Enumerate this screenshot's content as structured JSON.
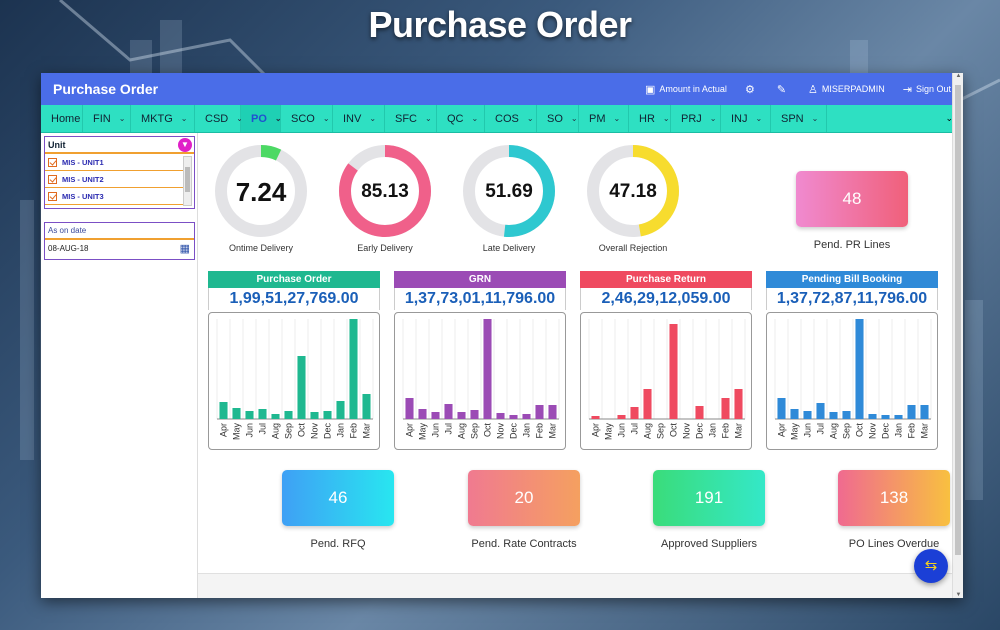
{
  "page_title": "Purchase Order",
  "app": {
    "title": "Purchase Order",
    "amount_label": "Amount in Actual",
    "user": "MISERPADMIN",
    "signout": "Sign Out"
  },
  "nav": [
    "Home",
    "FIN",
    "MKTG",
    "CSD",
    "PO",
    "SCO",
    "INV",
    "SFC",
    "QC",
    "COS",
    "SO",
    "PM",
    "HR",
    "PRJ",
    "INJ",
    "SPN"
  ],
  "nav_active": "PO",
  "sidebar": {
    "unit_label": "Unit",
    "units": [
      "MIS - UNIT1",
      "MIS - UNIT2",
      "MIS - UNIT3"
    ],
    "date_label": "As on date",
    "date_value": "08-AUG-18"
  },
  "gauges": [
    {
      "value": "7.24",
      "label": "Ontime Delivery",
      "pct": 7.24,
      "color": "#4cd964"
    },
    {
      "value": "85.13",
      "label": "Early Delivery",
      "pct": 85.13,
      "color": "#f0608a"
    },
    {
      "value": "51.69",
      "label": "Late Delivery",
      "pct": 51.69,
      "color": "#2ec8d0"
    },
    {
      "value": "47.18",
      "label": "Overall Rejection",
      "pct": 47.18,
      "color": "#f7dc2e"
    }
  ],
  "pend_pr": {
    "value": "48",
    "label": "Pend. PR Lines"
  },
  "bottom_cards": [
    {
      "value": "46",
      "label": "Pend. RFQ"
    },
    {
      "value": "20",
      "label": "Pend. Rate Contracts"
    },
    {
      "value": "191",
      "label": "Approved Suppliers"
    },
    {
      "value": "138",
      "label": "PO Lines Overdue"
    }
  ],
  "chart_data": [
    {
      "type": "bar",
      "title": "Purchase Order",
      "amount": "1,99,51,27,769.00",
      "color": "#1fb890",
      "categories": [
        "Apr",
        "May",
        "Jun",
        "Jul",
        "Aug",
        "Sep",
        "Oct",
        "Nov",
        "Dec",
        "Jan",
        "Feb",
        "Mar"
      ],
      "values": [
        17,
        11,
        8,
        10,
        5,
        8,
        63,
        7,
        8,
        18,
        100,
        25
      ]
    },
    {
      "type": "bar",
      "title": "GRN",
      "amount": "1,37,73,01,11,796.00",
      "color": "#9b4bb5",
      "categories": [
        "Apr",
        "May",
        "Jun",
        "Jul",
        "Aug",
        "Sep",
        "Oct",
        "Nov",
        "Dec",
        "Jan",
        "Feb",
        "Mar"
      ],
      "values": [
        21,
        10,
        7,
        15,
        7,
        9,
        100,
        6,
        4,
        5,
        14,
        14
      ]
    },
    {
      "type": "bar",
      "title": "Purchase Return",
      "amount": "2,46,29,12,059.00",
      "color": "#ef4a60",
      "categories": [
        "Apr",
        "May",
        "Jun",
        "Jul",
        "Aug",
        "Sep",
        "Oct",
        "Nov",
        "Dec",
        "Jan",
        "Feb",
        "Mar"
      ],
      "values": [
        3,
        0,
        4,
        12,
        30,
        0,
        95,
        0,
        13,
        0,
        21,
        30
      ]
    },
    {
      "type": "bar",
      "title": "Pending Bill Booking",
      "amount": "1,37,72,87,11,796.00",
      "color": "#2f8ad8",
      "categories": [
        "Apr",
        "May",
        "Jun",
        "Jul",
        "Aug",
        "Sep",
        "Oct",
        "Nov",
        "Dec",
        "Jan",
        "Feb",
        "Mar"
      ],
      "values": [
        21,
        10,
        8,
        16,
        7,
        8,
        100,
        5,
        4,
        4,
        14,
        14
      ]
    }
  ]
}
